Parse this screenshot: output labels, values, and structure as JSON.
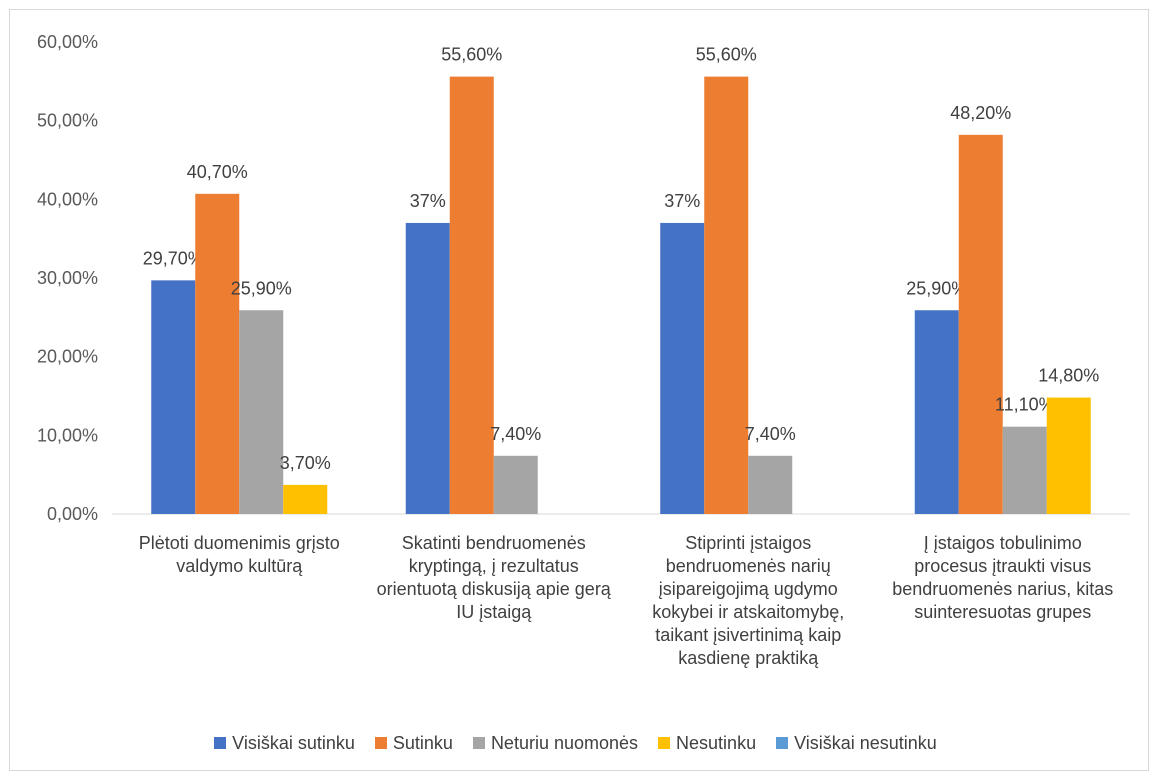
{
  "chart_data": {
    "type": "bar",
    "categories": [
      "Plėtoti duomenimis grįsto valdymo kultūrą",
      "Skatinti bendruomenės kryptingą, į rezultatus orientuotą diskusiją apie gerą IU įstaigą",
      "Stiprinti įstaigos bendruomenės narių įsipareigojimą ugdymo kokybei ir atskaitomybę, taikant įsivertinimą kaip kasdienę praktiką",
      "Į įstaigos tobulinimo procesus įtraukti visus bendruomenės narius, kitas suinteresuotas grupes"
    ],
    "series": [
      {
        "name": "Visiškai sutinku",
        "color": "#4472c4",
        "values": [
          29.7,
          37,
          37,
          25.9
        ],
        "labels": [
          "29,70%",
          "37%",
          "37%",
          "25,90%"
        ]
      },
      {
        "name": "Sutinku",
        "color": "#ed7d31",
        "values": [
          40.7,
          55.6,
          55.6,
          48.2
        ],
        "labels": [
          "40,70%",
          "55,60%",
          "55,60%",
          "48,20%"
        ]
      },
      {
        "name": "Neturiu nuomonės",
        "color": "#a5a5a5",
        "values": [
          25.9,
          7.4,
          7.4,
          11.1
        ],
        "labels": [
          "25,90%",
          "7,40%",
          "7,40%",
          "11,10%"
        ]
      },
      {
        "name": "Nesutinku",
        "color": "#ffc000",
        "values": [
          3.7,
          0,
          0,
          14.8
        ],
        "labels": [
          "3,70%",
          "",
          "",
          "14,80%"
        ]
      },
      {
        "name": "Visiškai nesutinku",
        "color": "#5b9bd5",
        "values": [
          0,
          0,
          0,
          0
        ],
        "labels": [
          "",
          "",
          "",
          ""
        ]
      }
    ],
    "yticks": [
      "0,00%",
      "10,00%",
      "20,00%",
      "30,00%",
      "40,00%",
      "50,00%",
      "60,00%"
    ],
    "ylim": [
      0,
      60
    ],
    "grid": false,
    "legend_position": "bottom",
    "title": "",
    "xlabel": "",
    "ylabel": ""
  }
}
